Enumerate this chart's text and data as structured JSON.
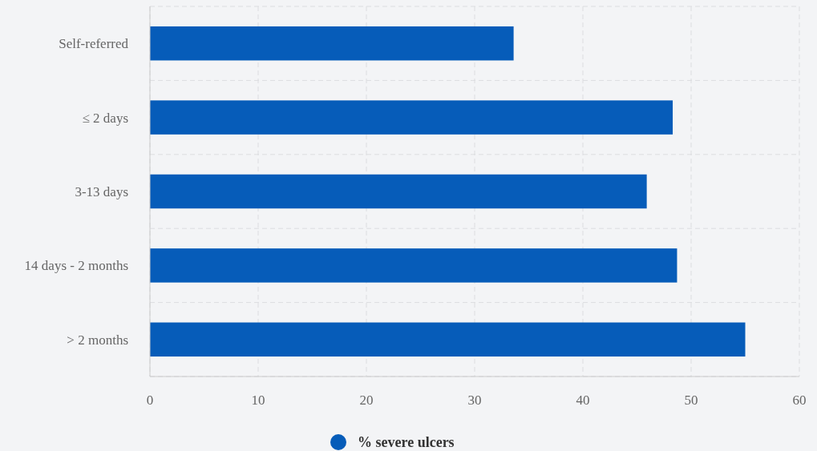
{
  "chart_data": {
    "type": "bar",
    "orientation": "horizontal",
    "categories": [
      "Self-referred",
      "≤ 2 days",
      "3-13 days",
      "14 days - 2 months",
      "> 2 months"
    ],
    "series": [
      {
        "name": "% severe ulcers",
        "color": "#065cb9",
        "values": [
          33.6,
          48.3,
          45.9,
          48.7,
          55.0
        ]
      }
    ],
    "xlim": [
      0,
      60
    ],
    "xticks": [
      0,
      10,
      20,
      30,
      40,
      50,
      60
    ],
    "grid": true,
    "legend": "bottom"
  }
}
